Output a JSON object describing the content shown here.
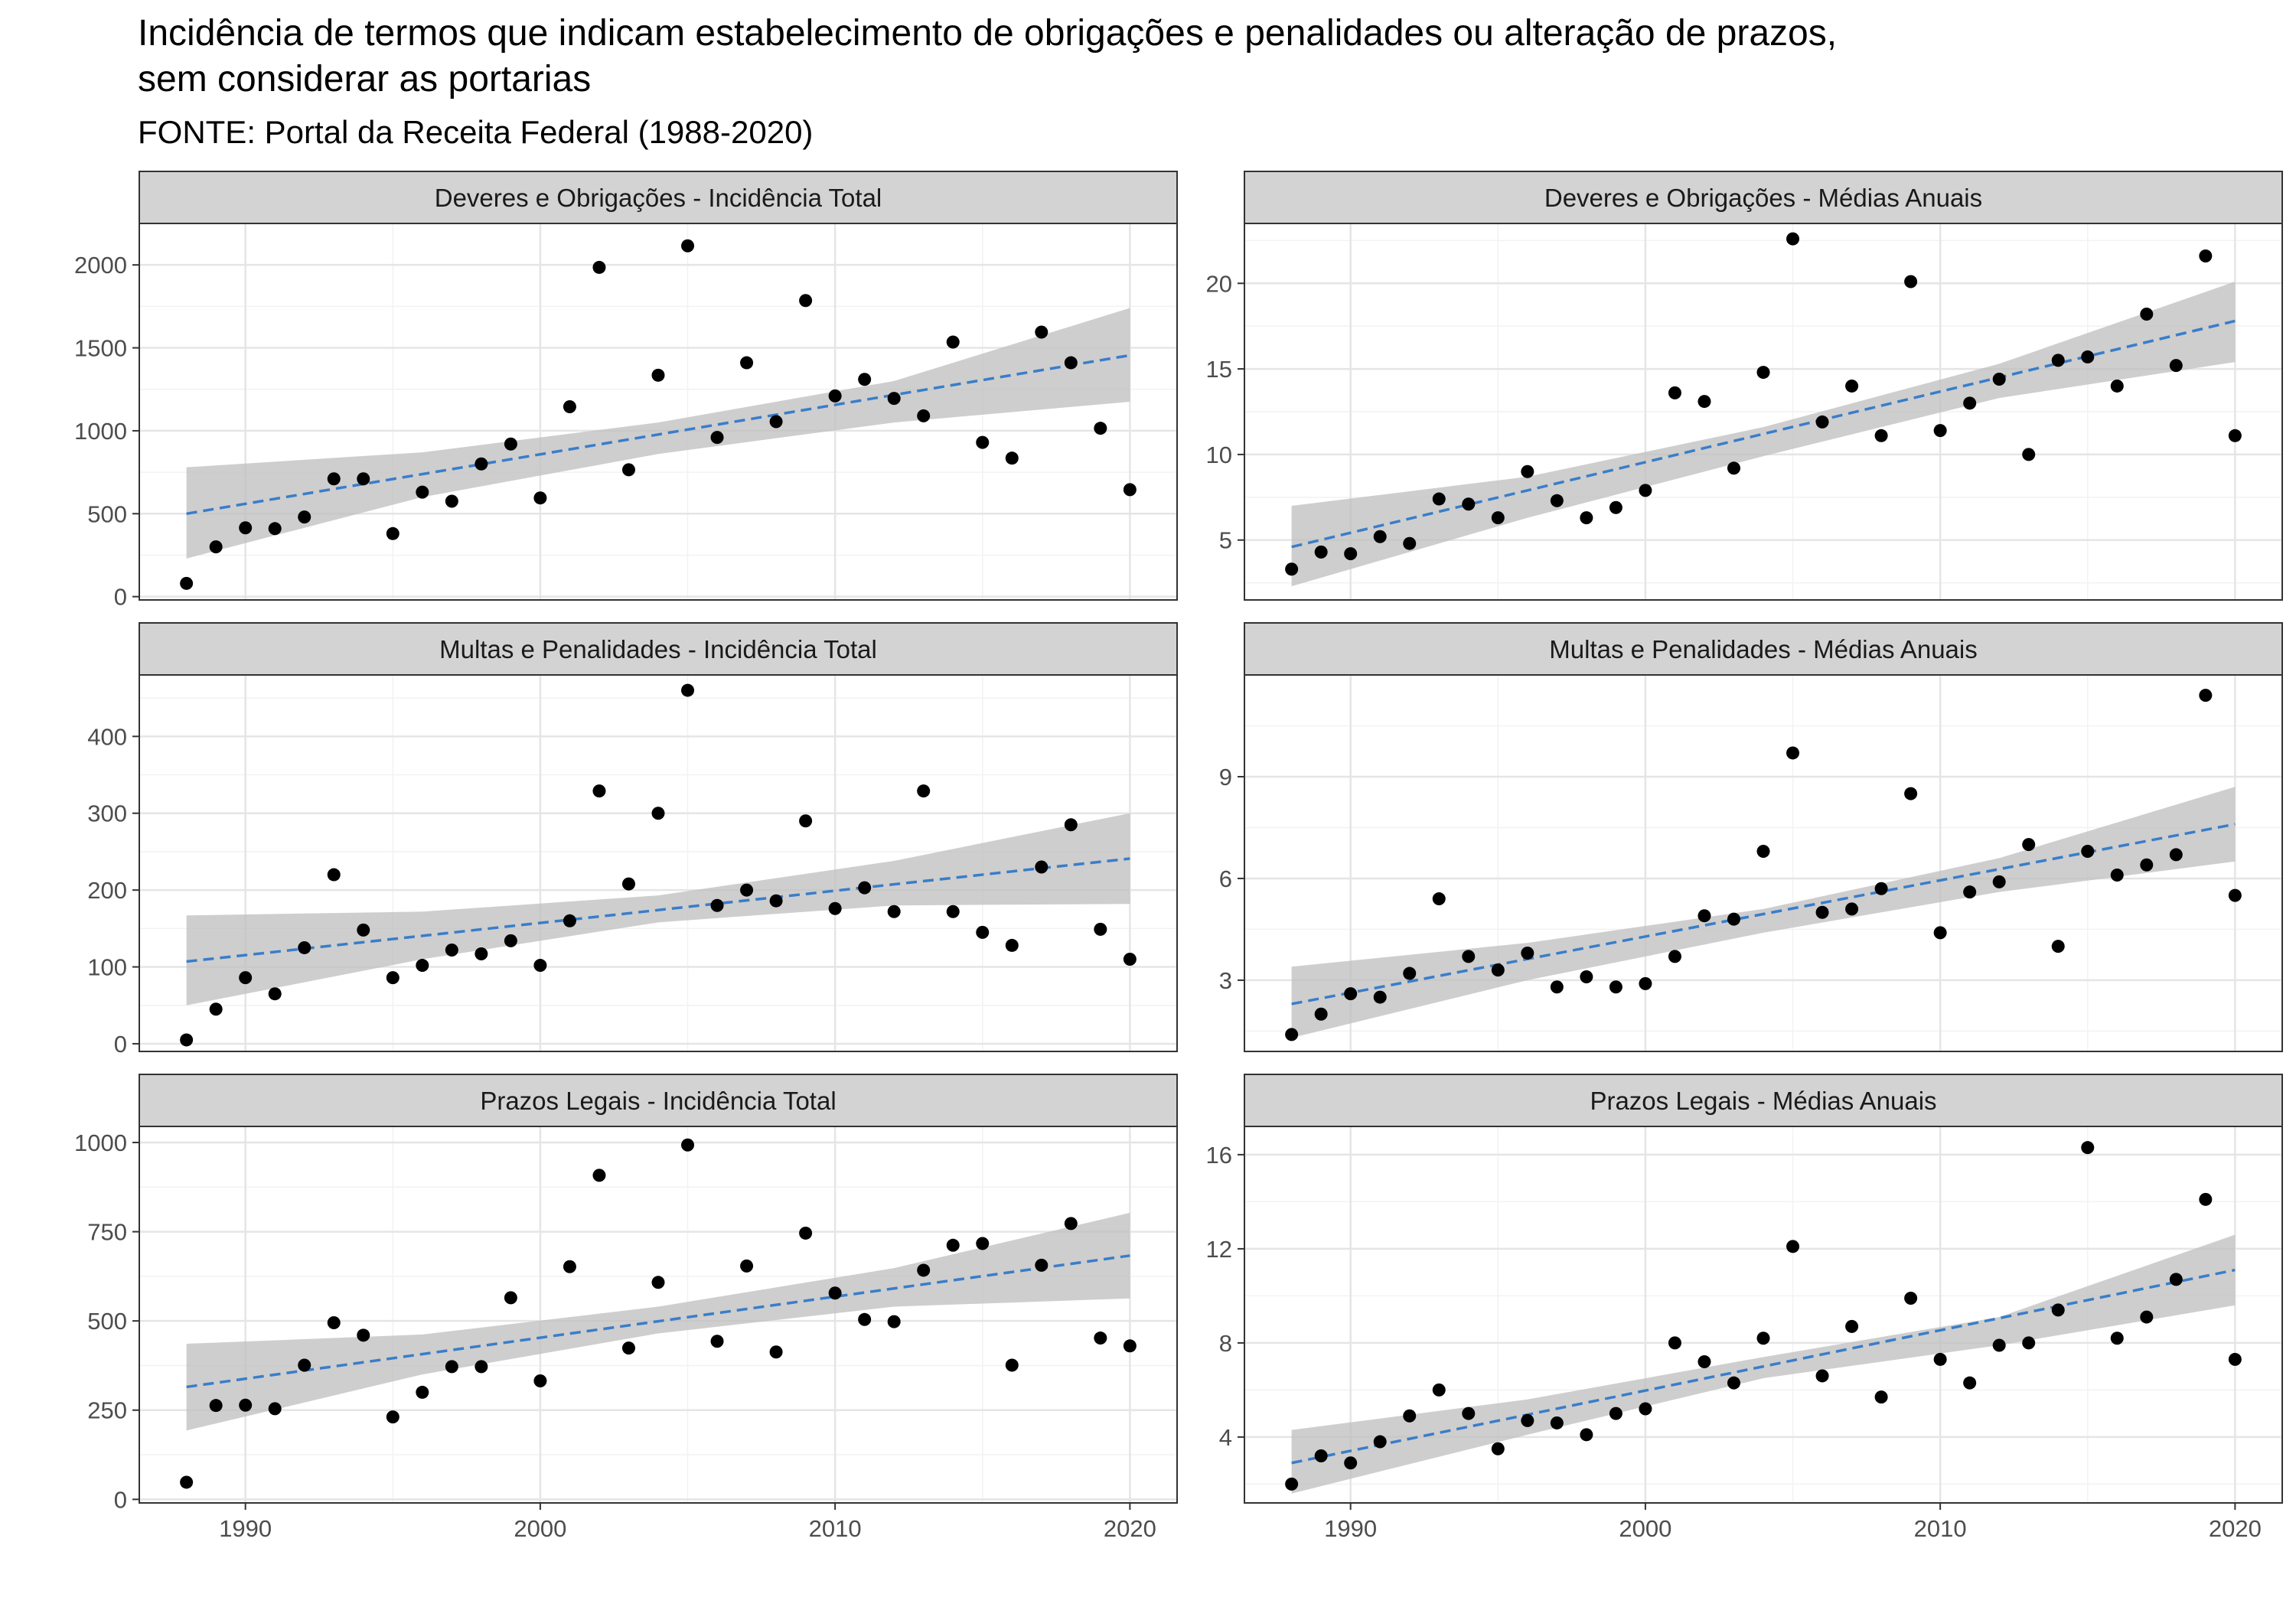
{
  "title": "Incidência de termos que indicam estabelecimento de obrigações e penalidades ou alteração de prazos,\nsem considerar as portarias",
  "subtitle": "FONTE: Portal da Receita Federal (1988-2020)",
  "colors": {
    "points": "#000000",
    "trend": "#3A7DC9",
    "ribbon": "#BDBDBD",
    "strip": "#D3D3D3",
    "grid": "#E5E5E5"
  },
  "chart_data": [
    {
      "type": "scatter",
      "title": "Deveres e Obrigações - Incidência Total",
      "xlim": [
        1986.4,
        2021.6
      ],
      "ylim": [
        -20,
        2250
      ],
      "xticks": [
        1990,
        2000,
        2010,
        2020
      ],
      "yticks": [
        0,
        500,
        1000,
        1500,
        2000
      ],
      "x": [
        1988,
        1989,
        1990,
        1991,
        1992,
        1993,
        1994,
        1995,
        1996,
        1997,
        1998,
        1999,
        2000,
        2001,
        2002,
        2003,
        2004,
        2005,
        2006,
        2007,
        2008,
        2009,
        2010,
        2011,
        2012,
        2013,
        2014,
        2015,
        2016,
        2017,
        2018,
        2019,
        2020
      ],
      "y": [
        80,
        300,
        415,
        410,
        480,
        710,
        710,
        380,
        630,
        575,
        800,
        920,
        595,
        1145,
        1985,
        765,
        1335,
        2115,
        960,
        1410,
        1055,
        1785,
        1210,
        1310,
        1195,
        1090,
        1535,
        930,
        835,
        1595,
        1410,
        1015,
        645
      ],
      "trend": {
        "x": [
          1988,
          2020
        ],
        "y": [
          500,
          1455
        ]
      },
      "band": {
        "x": [
          1988,
          1996,
          2004,
          2012,
          2020
        ],
        "lower": [
          230,
          600,
          860,
          1050,
          1175
        ],
        "upper": [
          780,
          870,
          1050,
          1300,
          1740
        ]
      }
    },
    {
      "type": "scatter",
      "title": "Deveres e Obrigações - Médias Anuais",
      "xlim": [
        1986.4,
        2021.6
      ],
      "ylim": [
        1.5,
        23.5
      ],
      "xticks": [
        1990,
        2000,
        2010,
        2020
      ],
      "yticks": [
        5,
        10,
        15,
        20
      ],
      "x": [
        1988,
        1989,
        1990,
        1991,
        1992,
        1993,
        1994,
        1995,
        1996,
        1997,
        1998,
        1999,
        2000,
        2001,
        2002,
        2003,
        2004,
        2005,
        2006,
        2007,
        2008,
        2009,
        2010,
        2011,
        2012,
        2013,
        2014,
        2015,
        2016,
        2017,
        2018,
        2019,
        2020
      ],
      "y": [
        3.3,
        4.3,
        4.2,
        5.2,
        4.8,
        7.4,
        7.1,
        6.3,
        9.0,
        7.3,
        6.3,
        6.9,
        7.9,
        13.6,
        13.1,
        9.2,
        14.8,
        22.6,
        11.9,
        14.0,
        11.1,
        20.1,
        11.4,
        13.0,
        14.4,
        10.0,
        15.5,
        15.7,
        14.0,
        18.2,
        15.2,
        21.6,
        11.1
      ],
      "trend": {
        "x": [
          1988,
          2020
        ],
        "y": [
          4.6,
          17.8
        ]
      },
      "band": {
        "x": [
          1988,
          1996,
          2004,
          2012,
          2020
        ],
        "lower": [
          2.3,
          6.3,
          9.9,
          13.3,
          15.4
        ],
        "upper": [
          7.0,
          8.7,
          11.6,
          15.3,
          20.1
        ]
      }
    },
    {
      "type": "scatter",
      "title": "Multas e Penalidades - Incidência Total",
      "xlim": [
        1986.4,
        2021.6
      ],
      "ylim": [
        -10,
        480
      ],
      "xticks": [
        1990,
        2000,
        2010,
        2020
      ],
      "yticks": [
        0,
        100,
        200,
        300,
        400
      ],
      "x": [
        1988,
        1989,
        1990,
        1991,
        1992,
        1993,
        1994,
        1995,
        1996,
        1997,
        1998,
        1999,
        2000,
        2001,
        2002,
        2003,
        2004,
        2005,
        2006,
        2007,
        2008,
        2009,
        2010,
        2011,
        2012,
        2013,
        2014,
        2015,
        2016,
        2017,
        2018,
        2019,
        2020
      ],
      "y": [
        5,
        45,
        86,
        65,
        125,
        220,
        148,
        86,
        102,
        122,
        117,
        134,
        102,
        160,
        329,
        208,
        300,
        460,
        180,
        200,
        186,
        290,
        176,
        203,
        172,
        329,
        172,
        145,
        128,
        230,
        285,
        149,
        110
      ],
      "trend": {
        "x": [
          1988,
          2020
        ],
        "y": [
          107,
          241
        ]
      },
      "band": {
        "x": [
          1988,
          1996,
          2004,
          2012,
          2020
        ],
        "lower": [
          50,
          110,
          158,
          180,
          182
        ],
        "upper": [
          167,
          172,
          193,
          238,
          300
        ]
      }
    },
    {
      "type": "scatter",
      "title": "Multas e Penalidades - Médias Anuais",
      "xlim": [
        1986.4,
        2021.6
      ],
      "ylim": [
        0.9,
        12.0
      ],
      "xticks": [
        1990,
        2000,
        2010,
        2020
      ],
      "yticks": [
        3,
        6,
        9
      ],
      "x": [
        1988,
        1989,
        1990,
        1991,
        1992,
        1993,
        1994,
        1995,
        1996,
        1997,
        1998,
        1999,
        2000,
        2001,
        2002,
        2003,
        2004,
        2005,
        2006,
        2007,
        2008,
        2009,
        2010,
        2011,
        2012,
        2013,
        2014,
        2015,
        2016,
        2017,
        2018,
        2019,
        2020
      ],
      "y": [
        1.4,
        2.0,
        2.6,
        2.5,
        3.2,
        5.4,
        3.7,
        3.3,
        3.8,
        2.8,
        3.1,
        2.8,
        2.9,
        3.7,
        4.9,
        4.8,
        6.8,
        9.7,
        5.0,
        5.1,
        5.7,
        8.5,
        4.4,
        5.6,
        5.9,
        7.0,
        4.0,
        6.8,
        6.1,
        6.4,
        6.7,
        11.4,
        5.5
      ],
      "trend": {
        "x": [
          1988,
          2020
        ],
        "y": [
          2.3,
          7.6
        ]
      },
      "band": {
        "x": [
          1988,
          1996,
          2004,
          2012,
          2020
        ],
        "lower": [
          1.3,
          3.0,
          4.4,
          5.6,
          6.5
        ],
        "upper": [
          3.4,
          4.1,
          5.1,
          6.6,
          8.7
        ]
      }
    },
    {
      "type": "scatter",
      "title": "Prazos Legais - Incidência Total",
      "xlim": [
        1986.4,
        2021.6
      ],
      "ylim": [
        -10,
        1045
      ],
      "xticks": [
        1990,
        2000,
        2010,
        2020
      ],
      "yticks": [
        0,
        250,
        500,
        750,
        1000
      ],
      "x": [
        1988,
        1989,
        1990,
        1991,
        1992,
        1993,
        1994,
        1995,
        1996,
        1997,
        1998,
        1999,
        2000,
        2001,
        2002,
        2003,
        2004,
        2005,
        2006,
        2007,
        2008,
        2009,
        2010,
        2011,
        2012,
        2013,
        2014,
        2015,
        2016,
        2017,
        2018,
        2019,
        2020
      ],
      "y": [
        48,
        263,
        264,
        254,
        376,
        495,
        460,
        231,
        300,
        372,
        372,
        565,
        332,
        652,
        908,
        424,
        608,
        993,
        443,
        654,
        413,
        746,
        578,
        504,
        498,
        642,
        712,
        717,
        376,
        656,
        773,
        452,
        430
      ],
      "trend": {
        "x": [
          1988,
          2020
        ],
        "y": [
          315,
          683
        ]
      },
      "band": {
        "x": [
          1988,
          1996,
          2004,
          2012,
          2020
        ],
        "lower": [
          193,
          350,
          465,
          540,
          563
        ],
        "upper": [
          436,
          462,
          540,
          648,
          803
        ]
      }
    },
    {
      "type": "scatter",
      "title": "Prazos Legais - Médias Anuais",
      "xlim": [
        1986.4,
        2021.6
      ],
      "ylim": [
        1.2,
        17.2
      ],
      "xticks": [
        1990,
        2000,
        2010,
        2020
      ],
      "yticks": [
        4,
        8,
        12,
        16
      ],
      "x": [
        1988,
        1989,
        1990,
        1991,
        1992,
        1993,
        1994,
        1995,
        1996,
        1997,
        1998,
        1999,
        2000,
        2001,
        2002,
        2003,
        2004,
        2005,
        2006,
        2007,
        2008,
        2009,
        2010,
        2011,
        2012,
        2013,
        2014,
        2015,
        2016,
        2017,
        2018,
        2019,
        2020
      ],
      "y": [
        2.0,
        3.2,
        2.9,
        3.8,
        4.9,
        6.0,
        5.0,
        3.5,
        4.7,
        4.6,
        4.1,
        5.0,
        5.2,
        8.0,
        7.2,
        6.3,
        8.2,
        12.1,
        6.6,
        8.7,
        5.7,
        9.9,
        7.3,
        6.3,
        7.9,
        8.0,
        9.4,
        16.3,
        8.2,
        9.1,
        10.7,
        14.1,
        7.3
      ],
      "trend": {
        "x": [
          1988,
          2020
        ],
        "y": [
          2.9,
          11.1
        ]
      },
      "band": {
        "x": [
          1988,
          1996,
          2004,
          2012,
          2020
        ],
        "lower": [
          1.6,
          4.1,
          6.5,
          7.9,
          9.6
        ],
        "upper": [
          4.3,
          5.6,
          7.4,
          9.1,
          12.6
        ]
      }
    }
  ]
}
